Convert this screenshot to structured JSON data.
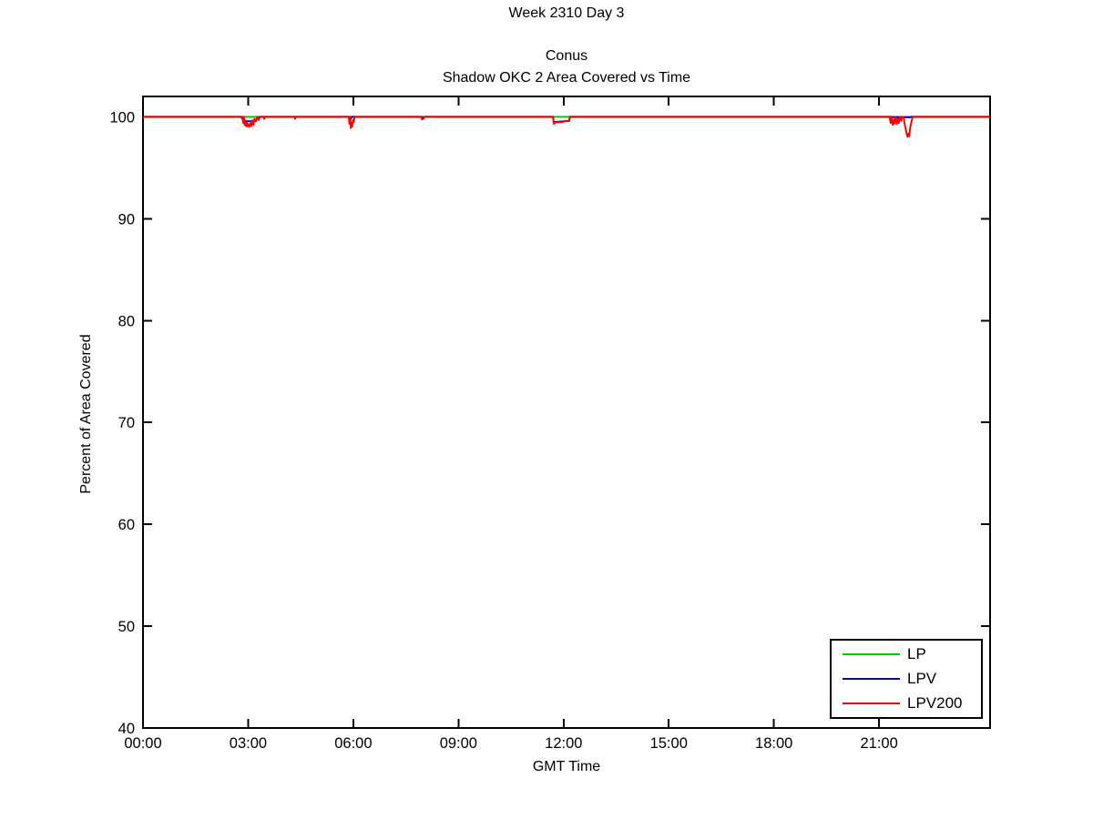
{
  "chart_data": {
    "type": "line",
    "suptitle": "Week 2310 Day 3",
    "title": "Conus",
    "subtitle": "Shadow OKC 2 Area Covered vs Time",
    "xlabel": "GMT Time",
    "ylabel": "Percent of Area Covered",
    "xlim": [
      0,
      24.1667
    ],
    "ylim": [
      40,
      102
    ],
    "grid": false,
    "legend_position": "lower right",
    "axis_color": "#000000",
    "x_ticks": [
      {
        "v": 0,
        "label": "00:00"
      },
      {
        "v": 3,
        "label": "03:00"
      },
      {
        "v": 6,
        "label": "06:00"
      },
      {
        "v": 9,
        "label": "09:00"
      },
      {
        "v": 12,
        "label": "12:00"
      },
      {
        "v": 15,
        "label": "15:00"
      },
      {
        "v": 18,
        "label": "18:00"
      },
      {
        "v": 21,
        "label": "21:00"
      }
    ],
    "y_ticks": [
      {
        "v": 40,
        "label": "40"
      },
      {
        "v": 50,
        "label": "50"
      },
      {
        "v": 60,
        "label": "60"
      },
      {
        "v": 70,
        "label": "70"
      },
      {
        "v": 80,
        "label": "80"
      },
      {
        "v": 90,
        "label": "90"
      },
      {
        "v": 100,
        "label": "100"
      }
    ],
    "series": [
      {
        "name": "LP",
        "color": "#00CC00",
        "points": [
          [
            0,
            100
          ],
          [
            24.1667,
            100
          ]
        ]
      },
      {
        "name": "LPV",
        "color": "#0000DD",
        "points": [
          [
            0,
            100
          ],
          [
            2.79,
            100
          ],
          [
            2.86,
            99.7
          ],
          [
            2.95,
            99.58
          ],
          [
            3.08,
            99.55
          ],
          [
            3.22,
            99.68
          ],
          [
            3.33,
            100
          ],
          [
            5.9,
            100
          ],
          [
            5.93,
            99.8
          ],
          [
            5.96,
            100
          ],
          [
            7.94,
            100
          ],
          [
            7.98,
            99.8
          ],
          [
            8.03,
            100
          ],
          [
            11.7,
            100
          ],
          [
            11.72,
            99.4
          ],
          [
            11.75,
            99.5
          ],
          [
            12.0,
            99.55
          ],
          [
            12.16,
            99.6
          ],
          [
            12.18,
            100
          ],
          [
            21.32,
            100
          ],
          [
            21.4,
            99.95
          ],
          [
            21.88,
            99.95
          ],
          [
            21.95,
            100
          ],
          [
            24.1667,
            100
          ]
        ]
      },
      {
        "name": "LPV200",
        "color": "#FF0000",
        "points": [
          [
            0,
            100
          ],
          [
            2.83,
            100
          ],
          [
            2.86,
            99.4
          ],
          [
            2.88,
            100
          ],
          [
            2.9,
            99.2
          ],
          [
            2.92,
            99.55
          ],
          [
            2.94,
            99.1
          ],
          [
            2.96,
            99.45
          ],
          [
            2.98,
            99.05
          ],
          [
            3.0,
            99.3
          ],
          [
            3.03,
            99.0
          ],
          [
            3.06,
            99.35
          ],
          [
            3.09,
            99.1
          ],
          [
            3.12,
            99.65
          ],
          [
            3.15,
            99.2
          ],
          [
            3.18,
            99.8
          ],
          [
            3.22,
            99.55
          ],
          [
            3.26,
            100
          ],
          [
            3.3,
            99.7
          ],
          [
            3.34,
            100
          ],
          [
            3.44,
            100
          ],
          [
            3.46,
            99.8
          ],
          [
            3.48,
            100
          ],
          [
            4.33,
            100
          ],
          [
            4.34,
            99.8
          ],
          [
            4.36,
            100
          ],
          [
            5.87,
            100
          ],
          [
            5.89,
            99.3
          ],
          [
            5.91,
            100
          ],
          [
            5.93,
            98.9
          ],
          [
            5.95,
            99.4
          ],
          [
            5.97,
            99.05
          ],
          [
            5.99,
            99.7
          ],
          [
            6.01,
            99.5
          ],
          [
            6.04,
            100
          ],
          [
            7.93,
            100
          ],
          [
            7.96,
            99.75
          ],
          [
            8.0,
            99.8
          ],
          [
            8.04,
            100
          ],
          [
            11.7,
            100
          ],
          [
            11.72,
            99.3
          ],
          [
            11.75,
            99.45
          ],
          [
            11.98,
            99.5
          ],
          [
            12.02,
            99.6
          ],
          [
            12.16,
            99.6
          ],
          [
            12.18,
            100
          ],
          [
            21.3,
            100
          ],
          [
            21.33,
            99.4
          ],
          [
            21.36,
            100
          ],
          [
            21.39,
            99.2
          ],
          [
            21.41,
            99.7
          ],
          [
            21.43,
            99.3
          ],
          [
            21.46,
            100
          ],
          [
            21.5,
            99.3
          ],
          [
            21.53,
            99.8
          ],
          [
            21.56,
            99.4
          ],
          [
            21.59,
            100
          ],
          [
            21.63,
            99.6
          ],
          [
            21.66,
            100
          ],
          [
            21.7,
            99.9
          ],
          [
            21.73,
            99.3
          ],
          [
            21.77,
            98.6
          ],
          [
            21.81,
            98.05
          ],
          [
            21.84,
            98.35
          ],
          [
            21.86,
            98.1
          ],
          [
            21.89,
            99.0
          ],
          [
            21.93,
            99.6
          ],
          [
            21.96,
            100
          ],
          [
            24.1667,
            100
          ]
        ]
      }
    ]
  }
}
